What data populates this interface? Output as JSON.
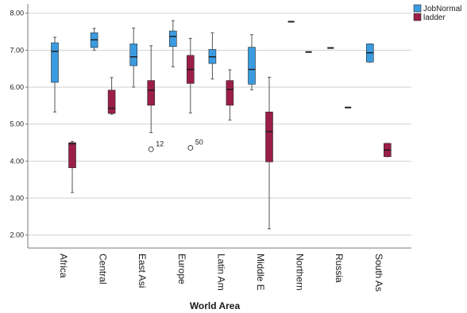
{
  "chart_data": {
    "type": "boxplot",
    "xlabel": "World Area",
    "ylabel": "",
    "ylim": [
      1.65,
      8.25
    ],
    "yticks": [
      {
        "value": 2,
        "label": "2.00"
      },
      {
        "value": 3,
        "label": "3.00"
      },
      {
        "value": 4,
        "label": "4.00"
      },
      {
        "value": 5,
        "label": "5.00"
      },
      {
        "value": 6,
        "label": "6.00"
      },
      {
        "value": 7,
        "label": "7.00"
      },
      {
        "value": 8,
        "label": "8.00"
      }
    ],
    "grid": true,
    "legend_position": "top-right",
    "categories": [
      "Africa",
      "Central",
      "East Asi",
      "Europe",
      "Latin Am",
      "Middle E",
      "Northern",
      "Russia",
      "South As"
    ],
    "series": [
      {
        "name": "JobNormal",
        "color": "#3b9be0",
        "boxes": [
          {
            "min": 5.33,
            "q1": 6.13,
            "median": 6.97,
            "q3": 7.2,
            "max": 7.35
          },
          {
            "min": 7.0,
            "q1": 7.07,
            "median": 7.28,
            "q3": 7.47,
            "max": 7.59
          },
          {
            "min": 6.0,
            "q1": 6.58,
            "median": 6.82,
            "q3": 7.17,
            "max": 7.6
          },
          {
            "min": 6.55,
            "q1": 7.1,
            "median": 7.37,
            "q3": 7.52,
            "max": 7.8
          },
          {
            "min": 6.22,
            "q1": 6.64,
            "median": 6.82,
            "q3": 7.02,
            "max": 7.47
          },
          {
            "min": 5.93,
            "q1": 6.08,
            "median": 6.48,
            "q3": 7.08,
            "max": 7.42
          },
          {
            "min": 7.77,
            "q1": 7.77,
            "median": 7.77,
            "q3": 7.77,
            "max": 7.77
          },
          {
            "min": 7.06,
            "q1": 7.06,
            "median": 7.06,
            "q3": 7.06,
            "max": 7.06
          },
          {
            "min": 6.68,
            "q1": 6.68,
            "median": 6.93,
            "q3": 7.17,
            "max": 7.17
          }
        ],
        "outliers": []
      },
      {
        "name": "ladder",
        "color": "#9b1e4a",
        "boxes": [
          {
            "min": 3.15,
            "q1": 3.82,
            "median": 4.47,
            "q3": 4.5,
            "max": 4.53
          },
          {
            "min": 5.27,
            "q1": 5.29,
            "median": 5.43,
            "q3": 5.92,
            "max": 6.26
          },
          {
            "min": 4.77,
            "q1": 5.51,
            "median": 5.92,
            "q3": 6.18,
            "max": 7.12
          },
          {
            "min": 5.3,
            "q1": 6.1,
            "median": 6.48,
            "q3": 6.86,
            "max": 7.32
          },
          {
            "min": 5.11,
            "q1": 5.51,
            "median": 5.94,
            "q3": 6.18,
            "max": 6.47
          },
          {
            "min": 2.17,
            "q1": 3.98,
            "median": 4.8,
            "q3": 5.33,
            "max": 6.27
          },
          {
            "min": 6.95,
            "q1": 6.95,
            "median": 6.95,
            "q3": 6.95,
            "max": 6.95
          },
          {
            "min": 5.45,
            "q1": 5.45,
            "median": 5.45,
            "q3": 5.45,
            "max": 5.45
          },
          {
            "min": 4.12,
            "q1": 4.12,
            "median": 4.3,
            "q3": 4.48,
            "max": 4.48
          }
        ],
        "outliers": [
          {
            "category_index": 2,
            "value": 4.32,
            "label": "12"
          },
          {
            "category_index": 3,
            "value": 4.36,
            "label": "50"
          }
        ]
      }
    ]
  }
}
